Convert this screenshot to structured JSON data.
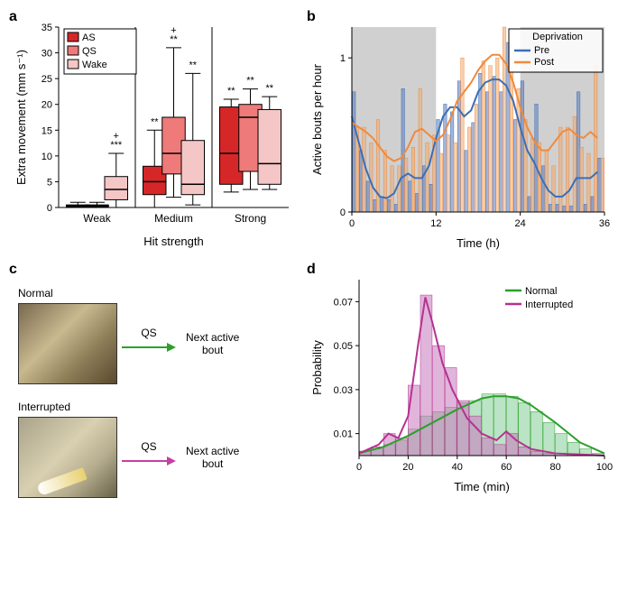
{
  "panel_labels": {
    "a": "a",
    "b": "b",
    "c": "c",
    "d": "d"
  },
  "panelA": {
    "ylabel": "Extra movement (mm s⁻¹)",
    "xlabel": "Hit strength",
    "ylim": [
      0,
      35
    ],
    "ytick_step": 5,
    "groups": [
      "Weak",
      "Medium",
      "Strong"
    ],
    "series": [
      "AS",
      "QS",
      "Wake"
    ],
    "series_colors": [
      "#d62728",
      "#ef7a7a",
      "#f5c6c6"
    ],
    "boxes": {
      "Weak": {
        "AS": {
          "q1": 0.1,
          "med": 0.3,
          "q3": 0.5,
          "lo": 0,
          "hi": 1.0,
          "sig": ""
        },
        "QS": {
          "q1": 0.1,
          "med": 0.3,
          "q3": 0.5,
          "lo": 0,
          "hi": 1.0,
          "sig": ""
        },
        "Wake": {
          "q1": 1.5,
          "med": 3.5,
          "q3": 6.0,
          "lo": 0,
          "hi": 10.5,
          "sig": "***\n+"
        }
      },
      "Medium": {
        "AS": {
          "q1": 2.5,
          "med": 5.0,
          "q3": 8.0,
          "lo": 0,
          "hi": 15.0,
          "sig": "**"
        },
        "QS": {
          "q1": 6.5,
          "med": 10.5,
          "q3": 17.5,
          "lo": 2.0,
          "hi": 31.0,
          "sig": "**\n+"
        },
        "Wake": {
          "q1": 2.5,
          "med": 4.5,
          "q3": 13.0,
          "lo": 0.5,
          "hi": 26.0,
          "sig": "**"
        }
      },
      "Strong": {
        "AS": {
          "q1": 4.5,
          "med": 10.5,
          "q3": 19.5,
          "lo": 3.0,
          "hi": 21.0,
          "sig": "**"
        },
        "QS": {
          "q1": 7.0,
          "med": 17.5,
          "q3": 20.0,
          "lo": 3.5,
          "hi": 23.0,
          "sig": "**"
        },
        "Wake": {
          "q1": 4.5,
          "med": 8.5,
          "q3": 19.0,
          "lo": 3.5,
          "hi": 21.5,
          "sig": "**"
        }
      }
    },
    "box_width": 0.6,
    "box_border": "#000000",
    "grid_divider_color": "#000000"
  },
  "panelB": {
    "ylabel": "Active bouts per hour",
    "xlabel": "Time (h)",
    "xlim": [
      0,
      36
    ],
    "ylim": [
      0,
      1.2
    ],
    "xtick_step": 12,
    "ytick_step": 1,
    "shade_ranges": [
      [
        0,
        12
      ],
      [
        24,
        36
      ]
    ],
    "shade_color": "#d0d0d0",
    "legend_title": "Deprivation",
    "series": {
      "Pre": {
        "color": "#3b6fb6",
        "bar_fill": "rgba(90,120,190,0.55)"
      },
      "Post": {
        "color": "#f08a3c",
        "bar_fill": "rgba(240,170,110,0.55)"
      }
    },
    "hours": [
      0,
      1,
      2,
      3,
      4,
      5,
      6,
      7,
      8,
      9,
      10,
      11,
      12,
      13,
      14,
      15,
      16,
      17,
      18,
      19,
      20,
      21,
      22,
      23,
      24,
      25,
      26,
      27,
      28,
      29,
      30,
      31,
      32,
      33,
      34,
      35
    ],
    "pre_bars": [
      0.78,
      0.4,
      0.2,
      0.08,
      0.1,
      0.08,
      0.05,
      0.8,
      0.2,
      0.12,
      0.3,
      0.18,
      0.6,
      0.7,
      0.65,
      0.85,
      0.4,
      0.58,
      0.9,
      0.78,
      0.88,
      0.78,
      1.1,
      0.6,
      0.85,
      0.1,
      0.7,
      0.3,
      0.05,
      0.05,
      0.04,
      0.04,
      0.78,
      0.05,
      0.1,
      0.35
    ],
    "post_bars": [
      0.55,
      0.55,
      0.45,
      0.6,
      0.4,
      0.3,
      0.3,
      0.35,
      0.42,
      0.8,
      0.45,
      0.5,
      0.38,
      0.5,
      0.45,
      1.0,
      0.55,
      0.7,
      0.98,
      0.95,
      1.0,
      1.2,
      0.92,
      0.8,
      0.6,
      0.48,
      0.45,
      0.4,
      0.3,
      0.55,
      0.55,
      0.62,
      0.42,
      0.38,
      0.95,
      0.35
    ],
    "pre_smooth": [
      0.62,
      0.45,
      0.28,
      0.16,
      0.1,
      0.09,
      0.12,
      0.22,
      0.25,
      0.22,
      0.22,
      0.3,
      0.48,
      0.62,
      0.68,
      0.68,
      0.62,
      0.66,
      0.78,
      0.84,
      0.86,
      0.86,
      0.82,
      0.72,
      0.55,
      0.4,
      0.32,
      0.22,
      0.14,
      0.1,
      0.1,
      0.14,
      0.22,
      0.22,
      0.22,
      0.26
    ],
    "post_smooth": [
      0.58,
      0.55,
      0.52,
      0.48,
      0.42,
      0.36,
      0.33,
      0.35,
      0.42,
      0.52,
      0.54,
      0.5,
      0.46,
      0.5,
      0.6,
      0.72,
      0.78,
      0.84,
      0.92,
      0.98,
      1.02,
      1.02,
      0.96,
      0.84,
      0.68,
      0.55,
      0.46,
      0.4,
      0.4,
      0.46,
      0.52,
      0.54,
      0.5,
      0.48,
      0.52,
      0.48
    ]
  },
  "panelC": {
    "normal_label": "Normal",
    "interrupted_label": "Interrupted",
    "qs_label": "QS",
    "next_label": "Next active\nbout",
    "normal_arrow_color": "#2ca02c",
    "interrupted_arrow_color": "#c53fa0"
  },
  "panelD": {
    "ylabel": "Probability",
    "xlabel": "Time (min)",
    "xlim": [
      0,
      100
    ],
    "ylim": [
      0,
      0.08
    ],
    "xtick_step": 20,
    "yticks": [
      0.01,
      0.03,
      0.05,
      0.07
    ],
    "series": {
      "Normal": {
        "color": "#2ca02c",
        "bar_fill": "rgba(120,200,140,0.5)"
      },
      "Interrupted": {
        "color": "#b53290",
        "bar_fill": "rgba(200,120,190,0.55)"
      }
    },
    "bin_width": 5,
    "bin_centers": [
      2.5,
      7.5,
      12.5,
      17.5,
      22.5,
      27.5,
      32.5,
      37.5,
      42.5,
      47.5,
      52.5,
      57.5,
      62.5,
      67.5,
      72.5,
      77.5,
      82.5,
      87.5,
      92.5,
      97.5
    ],
    "normal_bars": [
      0.002,
      0.003,
      0.005,
      0.007,
      0.012,
      0.018,
      0.02,
      0.022,
      0.024,
      0.025,
      0.028,
      0.028,
      0.027,
      0.024,
      0.02,
      0.015,
      0.01,
      0.006,
      0.003,
      0.001
    ],
    "interrupted_bars": [
      0.002,
      0.004,
      0.01,
      0.008,
      0.032,
      0.073,
      0.05,
      0.04,
      0.025,
      0.018,
      0.008,
      0.005,
      0.01,
      0.004,
      0.002,
      0.001,
      0,
      0,
      0,
      0
    ],
    "normal_curve_x": [
      0,
      10,
      20,
      30,
      40,
      50,
      55,
      60,
      65,
      70,
      80,
      90,
      100
    ],
    "normal_curve_y": [
      0.001,
      0.004,
      0.009,
      0.015,
      0.021,
      0.026,
      0.027,
      0.027,
      0.026,
      0.023,
      0.015,
      0.006,
      0.001
    ],
    "interrupted_curve_x": [
      0,
      8,
      12,
      16,
      20,
      24,
      27,
      30,
      34,
      38,
      44,
      50,
      56,
      60,
      64,
      70,
      80,
      100
    ],
    "interrupted_curve_y": [
      0.001,
      0.005,
      0.01,
      0.008,
      0.018,
      0.05,
      0.072,
      0.06,
      0.042,
      0.03,
      0.017,
      0.01,
      0.007,
      0.011,
      0.007,
      0.003,
      0.001,
      0.0
    ]
  }
}
